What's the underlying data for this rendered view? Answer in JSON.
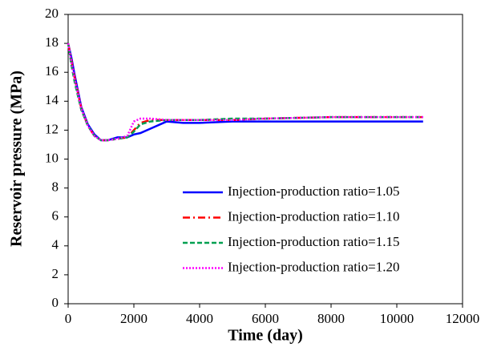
{
  "chart_data": {
    "type": "line",
    "xlabel": "Time (day)",
    "ylabel": "Reservoir pressure (MPa)",
    "x": [
      0,
      100,
      200,
      400,
      600,
      800,
      1000,
      1200,
      1500,
      1800,
      2000,
      2200,
      2500,
      3000,
      3500,
      4000,
      5000,
      6000,
      8000,
      10000,
      10800
    ],
    "series": [
      {
        "name": "Injection-production ratio=1.05",
        "color": "#0000ff",
        "dash": "solid",
        "values": [
          18.0,
          17.0,
          15.8,
          13.6,
          12.4,
          11.7,
          11.3,
          11.3,
          11.5,
          11.5,
          11.7,
          11.8,
          12.1,
          12.6,
          12.5,
          12.5,
          12.6,
          12.6,
          12.6,
          12.6,
          12.6
        ]
      },
      {
        "name": "Injection-production ratio=1.10",
        "color": "#ff0000",
        "dash": "dashdot",
        "values": [
          18.0,
          16.8,
          15.6,
          13.5,
          12.3,
          11.6,
          11.3,
          11.3,
          11.4,
          11.5,
          12.0,
          12.5,
          12.7,
          12.7,
          12.7,
          12.7,
          12.7,
          12.8,
          12.9,
          12.9,
          12.9
        ]
      },
      {
        "name": "Injection-production ratio=1.15",
        "color": "#00a050",
        "dash": "dashed",
        "values": [
          18.0,
          16.5,
          15.3,
          13.4,
          12.3,
          11.6,
          11.3,
          11.3,
          11.4,
          11.5,
          11.9,
          12.4,
          12.6,
          12.7,
          12.7,
          12.7,
          12.8,
          12.8,
          12.9,
          12.9,
          12.9
        ]
      },
      {
        "name": "Injection-production ratio=1.20",
        "color": "#ff00ff",
        "dash": "dotted",
        "values": [
          18.0,
          16.7,
          15.5,
          13.5,
          12.3,
          11.6,
          11.3,
          11.3,
          11.4,
          11.6,
          12.6,
          12.8,
          12.8,
          12.7,
          12.7,
          12.7,
          12.7,
          12.8,
          12.9,
          12.9,
          12.9
        ]
      }
    ],
    "xlim": [
      0,
      12000
    ],
    "xticks": [
      0,
      2000,
      4000,
      6000,
      8000,
      10000,
      12000
    ],
    "ylim": [
      0,
      20
    ],
    "yticks": [
      0,
      2,
      4,
      6,
      8,
      10,
      12,
      14,
      16,
      18,
      20
    ],
    "grid": false,
    "legend": "lower right"
  }
}
